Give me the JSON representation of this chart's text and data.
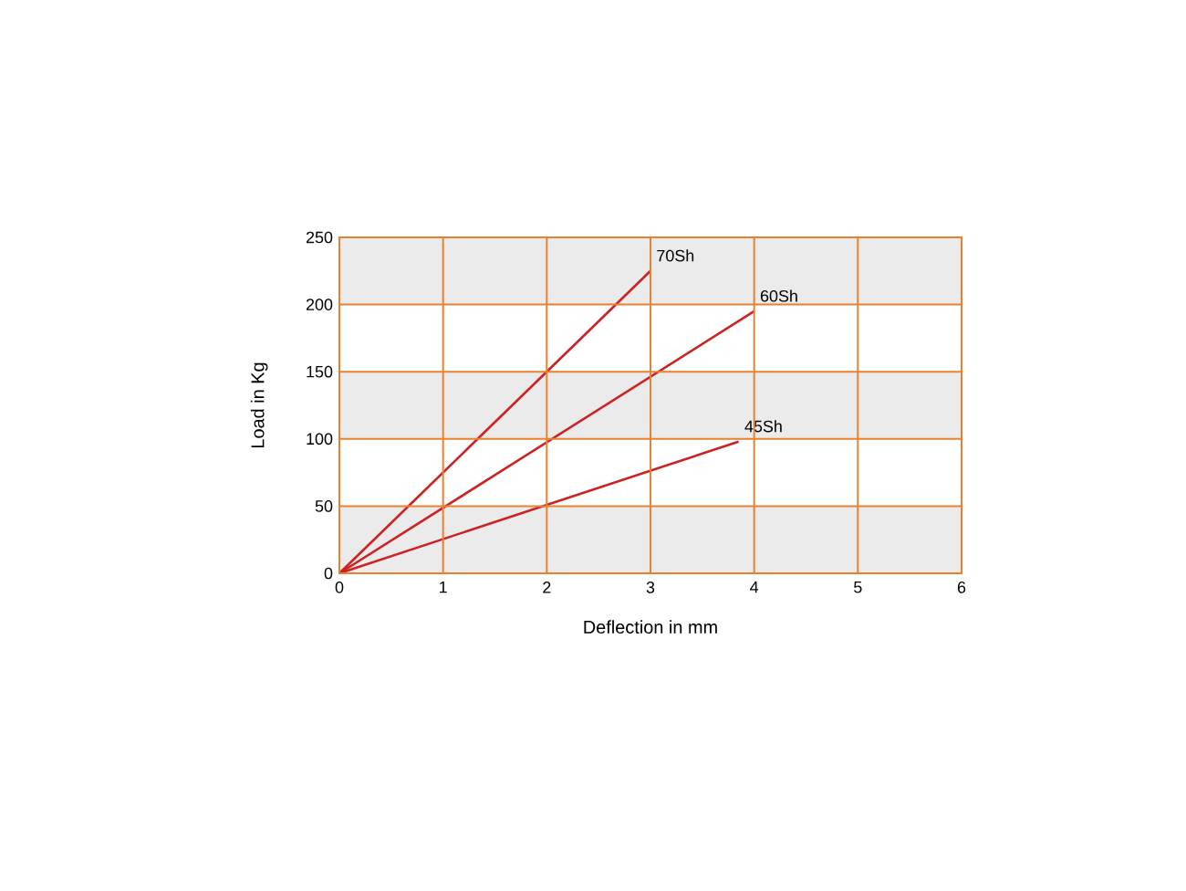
{
  "chart_data": {
    "type": "line",
    "xlabel": "Deflection in mm",
    "ylabel": "Load in Kg",
    "xlim": [
      0,
      6
    ],
    "xticks": [
      0,
      1,
      2,
      3,
      4,
      5,
      6
    ],
    "ylim": [
      0,
      250
    ],
    "yticks": [
      0,
      50,
      100,
      150,
      200,
      250
    ],
    "grid": true,
    "bands": [
      {
        "axis": "y",
        "from": 0,
        "to": 50,
        "color": "#ebebeb"
      },
      {
        "axis": "y",
        "from": 100,
        "to": 150,
        "color": "#ebebeb"
      },
      {
        "axis": "y",
        "from": 200,
        "to": 250,
        "color": "#ebebeb"
      }
    ],
    "series": [
      {
        "name": "70Sh",
        "color": "#cc2222",
        "x": [
          0,
          3
        ],
        "values": [
          0,
          225
        ]
      },
      {
        "name": "60Sh",
        "color": "#cc2222",
        "x": [
          0,
          4
        ],
        "values": [
          0,
          195
        ]
      },
      {
        "name": "45Sh",
        "color": "#cc2222",
        "x": [
          0,
          3.85
        ],
        "values": [
          0,
          98
        ]
      }
    ]
  }
}
